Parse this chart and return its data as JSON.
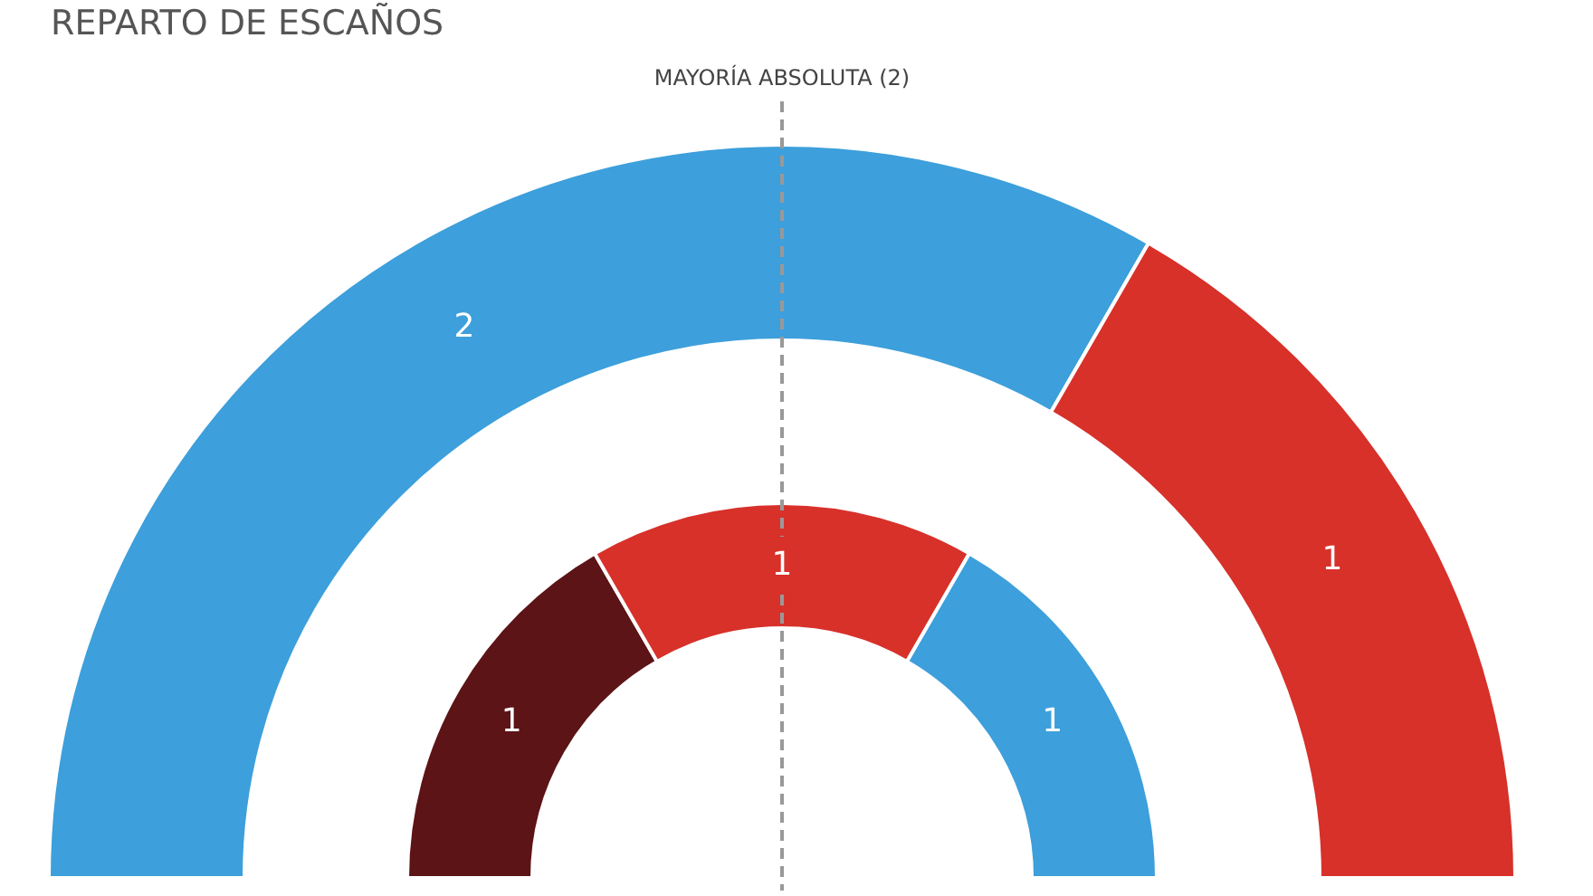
{
  "chart_data": [
    {
      "type": "donut",
      "title": "REPARTO DE ESCAÑOS",
      "annotations": [
        "MAYORÍA ABSOLUTA (2)"
      ],
      "categories": [
        null,
        null
      ],
      "values": [
        2,
        1
      ],
      "colors": [
        "#3d9fdb",
        "#d7312a"
      ],
      "data_labels": true
    },
    {
      "type": "donut",
      "categories": [
        null,
        null,
        null
      ],
      "values": [
        1,
        1,
        1
      ],
      "colors": [
        "#5c1416",
        "#d7312a",
        "#3d9fdb"
      ],
      "data_labels": true
    }
  ]
}
